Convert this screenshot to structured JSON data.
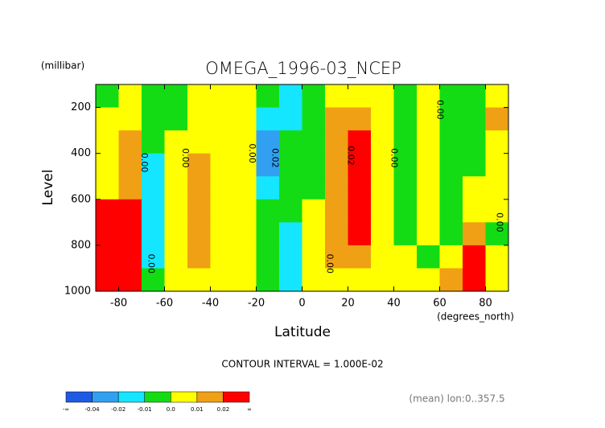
{
  "chart_data": {
    "type": "contour",
    "title": "OMEGA_1996-03_NCEP",
    "y_unit": "(millibar)",
    "ylabel": "Level",
    "xlabel": "Latitude",
    "x_unit": "(degrees_north)",
    "note": "CONTOUR INTERVAL = 1.000E-02",
    "footer": "(mean) lon:0..357.5",
    "xlim": [
      -90,
      90
    ],
    "xticks": [
      -80,
      -60,
      -40,
      -20,
      0,
      20,
      40,
      60,
      80
    ],
    "ylim": [
      1000,
      100
    ],
    "yticks": [
      200,
      400,
      600,
      800,
      1000
    ],
    "x": [
      -85,
      -75,
      -65,
      -55,
      -45,
      -35,
      -25,
      -15,
      -5,
      5,
      15,
      25,
      35,
      45,
      55,
      65,
      75,
      85
    ],
    "levels": [
      150,
      250,
      350,
      450,
      550,
      650,
      750,
      850,
      950
    ],
    "z": [
      [
        -0.005,
        0.005,
        -0.005,
        -0.005,
        0.005,
        0.005,
        0.005,
        -0.005,
        -0.015,
        -0.005,
        0.005,
        0.005,
        0.005,
        -0.005,
        0.005,
        -0.005,
        -0.005,
        0.005
      ],
      [
        0.005,
        0.005,
        -0.005,
        -0.005,
        0.005,
        0.005,
        0.005,
        -0.015,
        -0.015,
        -0.005,
        0.015,
        0.015,
        0.005,
        -0.005,
        0.005,
        -0.005,
        -0.005,
        0.015
      ],
      [
        0.005,
        0.015,
        -0.005,
        0.005,
        0.005,
        0.005,
        0.005,
        -0.03,
        -0.005,
        -0.005,
        0.015,
        0.025,
        0.005,
        -0.005,
        0.005,
        -0.005,
        -0.005,
        0.005
      ],
      [
        0.005,
        0.015,
        -0.015,
        0.005,
        0.015,
        0.005,
        0.005,
        -0.03,
        -0.005,
        -0.005,
        0.015,
        0.025,
        0.005,
        -0.005,
        0.005,
        -0.005,
        -0.005,
        0.005
      ],
      [
        0.005,
        0.015,
        -0.015,
        0.005,
        0.015,
        0.005,
        0.005,
        -0.015,
        -0.005,
        -0.005,
        0.015,
        0.025,
        0.005,
        -0.005,
        0.005,
        -0.005,
        0.005,
        0.005
      ],
      [
        0.025,
        0.025,
        -0.015,
        0.005,
        0.015,
        0.005,
        0.005,
        -0.005,
        -0.005,
        0.005,
        0.015,
        0.025,
        0.005,
        -0.005,
        0.005,
        -0.005,
        0.005,
        0.005
      ],
      [
        0.025,
        0.025,
        -0.015,
        0.005,
        0.015,
        0.005,
        0.005,
        -0.005,
        -0.015,
        0.005,
        0.015,
        0.025,
        0.005,
        -0.005,
        0.005,
        -0.005,
        0.015,
        -0.005
      ],
      [
        0.025,
        0.025,
        -0.015,
        0.005,
        0.015,
        0.005,
        0.005,
        -0.005,
        -0.015,
        0.005,
        0.015,
        0.015,
        0.005,
        0.005,
        -0.005,
        0.005,
        0.025,
        0.005
      ],
      [
        0.025,
        0.025,
        -0.005,
        0.005,
        0.005,
        0.005,
        0.005,
        -0.005,
        -0.015,
        0.005,
        0.005,
        0.005,
        0.005,
        0.005,
        0.005,
        0.015,
        0.025,
        0.005
      ]
    ],
    "contour_labels": [
      "0.00",
      "0.00",
      "0.00",
      "0.02",
      "0.02",
      "0.00",
      "0.00",
      "0.00",
      "0.00",
      "0.00"
    ],
    "colorbar": {
      "colors": [
        "#1e5ae6",
        "#32a0f0",
        "#14e6ff",
        "#14dc14",
        "#ffff00",
        "#f0a014",
        "#ff0000"
      ],
      "ticks": [
        {
          "value": -0.04,
          "label": "-0.04"
        },
        {
          "value": -0.02,
          "label": "-0.02"
        },
        {
          "value": -0.01,
          "label": "-0.01"
        },
        {
          "value": 0,
          "label": "0.0"
        },
        {
          "value": 0.01,
          "label": "0.01"
        },
        {
          "value": 0.02,
          "label": "0.02"
        }
      ],
      "ends": [
        "-∞",
        "∞"
      ]
    }
  }
}
